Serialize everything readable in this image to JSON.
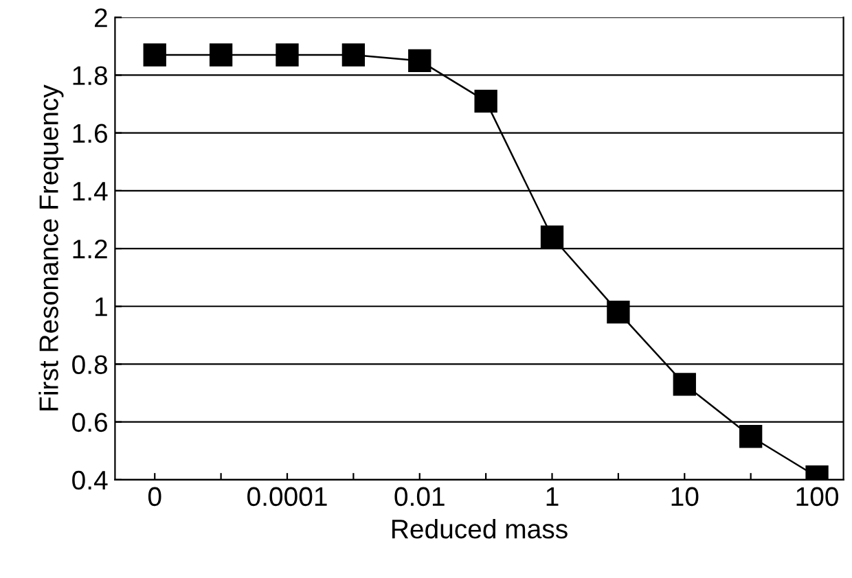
{
  "chart_data": {
    "type": "line",
    "xlabel": "Reduced mass",
    "ylabel": "First Resonance Frequency",
    "categories": [
      "0",
      null,
      "0.0001",
      null,
      "0.01",
      null,
      "1",
      null,
      "10",
      null,
      "100"
    ],
    "series": [
      {
        "color": "#000000",
        "values": [
          1.87,
          1.87,
          1.87,
          1.87,
          1.85,
          1.71,
          1.24,
          0.98,
          0.73,
          0.55,
          0.41
        ]
      }
    ],
    "ylim": [
      0.4,
      2
    ],
    "yticks": [
      0.4,
      0.6,
      0.8,
      1,
      1.2,
      1.4,
      1.6,
      1.8,
      2
    ],
    "grid": "y",
    "marker": "square",
    "line_style": "solid"
  }
}
